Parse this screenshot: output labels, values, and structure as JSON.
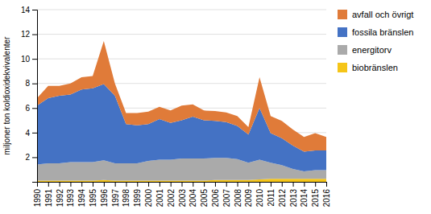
{
  "chart_data": {
    "type": "area",
    "stacked": true,
    "ylabel": "miljoner ton koldioxidekvivalenter",
    "x": [
      1990,
      1991,
      1992,
      1993,
      1994,
      1995,
      1996,
      1997,
      1998,
      1999,
      2000,
      2001,
      2002,
      2003,
      2004,
      2005,
      2006,
      2007,
      2008,
      2009,
      2010,
      2011,
      2012,
      2013,
      2014,
      2015,
      2016
    ],
    "xlim": [
      1990,
      2016
    ],
    "xticks": [
      1990,
      1991,
      1992,
      1993,
      1994,
      1995,
      1996,
      1997,
      1998,
      1999,
      2000,
      2001,
      2002,
      2003,
      2004,
      2005,
      2006,
      2007,
      2008,
      2009,
      2010,
      2011,
      2012,
      2013,
      2014,
      2015,
      2016
    ],
    "ylim": [
      0,
      14
    ],
    "yticks": [
      2,
      4,
      6,
      8,
      10,
      12,
      14
    ],
    "grid": true,
    "legend": "right",
    "series": [
      {
        "name": "biobränslen",
        "color": "#F5C518",
        "values": [
          0.1,
          0.1,
          0.1,
          0.1,
          0.1,
          0.1,
          0.15,
          0.1,
          0.1,
          0.1,
          0.1,
          0.1,
          0.1,
          0.1,
          0.1,
          0.1,
          0.15,
          0.15,
          0.15,
          0.15,
          0.2,
          0.25,
          0.25,
          0.25,
          0.25,
          0.25,
          0.25
        ]
      },
      {
        "name": "energitorv",
        "color": "#AAAAAA",
        "values": [
          1.3,
          1.4,
          1.4,
          1.5,
          1.5,
          1.5,
          1.6,
          1.4,
          1.4,
          1.4,
          1.6,
          1.7,
          1.7,
          1.8,
          1.8,
          1.8,
          1.8,
          1.8,
          1.7,
          1.4,
          1.6,
          1.3,
          1.1,
          0.8,
          0.6,
          0.7,
          0.7
        ]
      },
      {
        "name": "fossila bränslen",
        "color": "#4472C4",
        "values": [
          4.8,
          5.3,
          5.5,
          5.5,
          5.9,
          6.0,
          6.2,
          5.5,
          3.2,
          3.1,
          3.0,
          3.3,
          3.0,
          3.1,
          3.4,
          3.1,
          3.0,
          2.9,
          2.7,
          2.3,
          4.2,
          2.4,
          2.2,
          1.9,
          1.6,
          1.6,
          1.6
        ]
      },
      {
        "name": "avfall och övrigt",
        "color": "#E07B39",
        "values": [
          0.6,
          1.0,
          0.8,
          0.9,
          1.0,
          1.0,
          3.5,
          1.0,
          0.9,
          1.0,
          1.0,
          1.0,
          1.0,
          1.2,
          1.0,
          0.8,
          0.8,
          0.8,
          0.8,
          0.6,
          2.5,
          1.4,
          1.4,
          1.3,
          1.2,
          1.4,
          1.1
        ]
      }
    ]
  }
}
